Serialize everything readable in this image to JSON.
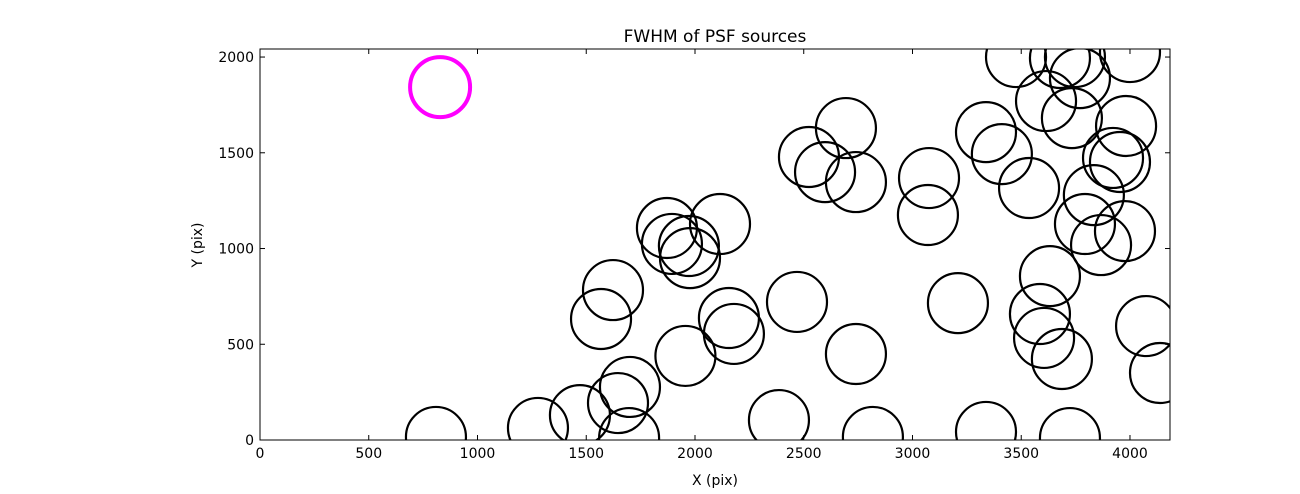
{
  "chart_data": {
    "type": "scatter",
    "title": "FWHM of PSF sources",
    "x_label": "X (pix)",
    "y_label": "Y (pix)",
    "xlim": [
      0,
      4184
    ],
    "ylim": [
      0,
      2042
    ],
    "xticks": [
      0,
      500,
      1000,
      1500,
      2000,
      2500,
      3000,
      3500,
      4000
    ],
    "yticks": [
      0,
      500,
      1000,
      1500,
      2000
    ],
    "series": [
      {
        "color": "#000000",
        "x": [
          809,
          1278,
          1471,
          1646,
          1701,
          1697,
          1956,
          1568,
          1623,
          1871,
          1894,
          1972,
          1977,
          2115,
          2156,
          2179,
          2469,
          2386,
          2740,
          2818,
          2524,
          2598,
          2740,
          2694,
          3076,
          3071,
          3209,
          3338,
          3411,
          3338,
          3536,
          3476,
          3614,
          3678,
          3747,
          3770,
          3733,
          4000,
          3632,
          3586,
          3605,
          3687,
          3724,
          3793,
          3834,
          3867,
          3982,
          3922,
          3954,
          3977,
          4074,
          4138
        ],
        "y": [
          16,
          63,
          130,
          193,
          277,
          10,
          439,
          632,
          783,
          1107,
          1024,
          1013,
          950,
          1128,
          637,
          554,
          721,
          104,
          449,
          16,
          1478,
          1399,
          1347,
          1629,
          1368,
          1175,
          715,
          1608,
          1493,
          42,
          1316,
          2000,
          1770,
          1995,
          2000,
          1890,
          1681,
          2026,
          856,
          658,
          533,
          423,
          10,
          1128,
          1279,
          1018,
          1640,
          1473,
          1452,
          1091,
          595,
          350
        ]
      },
      {
        "color": "#ff00ff",
        "x": [
          828
        ],
        "y": [
          1843
        ]
      }
    ]
  }
}
